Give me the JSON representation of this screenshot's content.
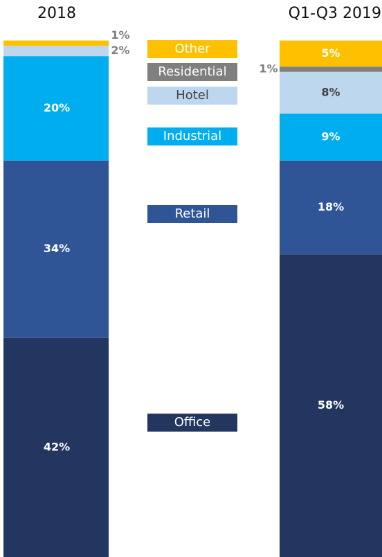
{
  "chart_data": {
    "type": "stacked_bar",
    "categories": [
      "2018",
      "Q1-Q3 2019"
    ],
    "series": [
      {
        "name": "Office",
        "color": "#22365f",
        "values": [
          42,
          58
        ],
        "value_labels": [
          "42%",
          "58%"
        ]
      },
      {
        "name": "Retail",
        "color": "#2f5597",
        "values": [
          34,
          18
        ],
        "value_labels": [
          "34%",
          "18%"
        ]
      },
      {
        "name": "Industrial",
        "color": "#00aeef",
        "values": [
          20,
          9
        ],
        "value_labels": [
          "20%",
          "9%"
        ]
      },
      {
        "name": "Hotel",
        "color": "#bdd7ee",
        "values": [
          2,
          8
        ],
        "value_labels": [
          "2%",
          "8%"
        ]
      },
      {
        "name": "Residential",
        "color": "#7f7f7f",
        "values": [
          0,
          1
        ],
        "value_labels": [
          null,
          "1%"
        ]
      },
      {
        "name": "Other",
        "color": "#ffc000",
        "values": [
          1,
          5
        ],
        "value_labels": [
          "1%",
          "5%"
        ]
      }
    ]
  }
}
